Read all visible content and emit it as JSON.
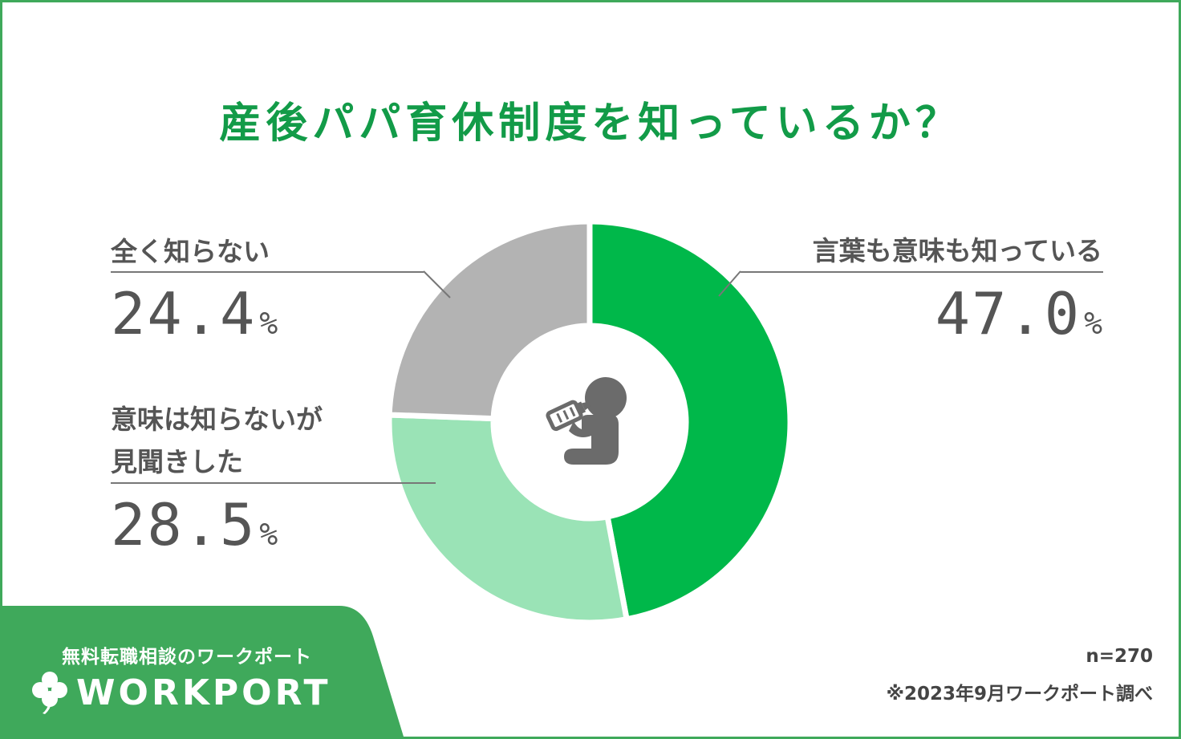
{
  "header": {
    "title": "産後パパ育休制度を知っているか？"
  },
  "colors": {
    "accent": "#129b48",
    "frame": "#3fa95b",
    "slice_know_meaning": "#00b84a",
    "slice_heard_only": "#9ae3b6",
    "slice_unknown": "#b3b3b3",
    "icon": "#6b6b6b"
  },
  "chart_data": {
    "type": "pie",
    "categories": [
      "言葉も意味も知っている",
      "意味は知らないが見聞きした",
      "全く知らない"
    ],
    "values": [
      47.0,
      28.5,
      24.4
    ],
    "unit": "%",
    "donut": true
  },
  "labels": {
    "know": {
      "line1": "言葉も意味も知っている",
      "value": "47.0",
      "unit": "%"
    },
    "heard": {
      "line1": "意味は知らないが",
      "line2": "見聞きした",
      "value": "28.5",
      "unit": "%"
    },
    "unknown": {
      "line1": "全く知らない",
      "value": "24.4",
      "unit": "%"
    }
  },
  "center_icon": "parent-feeding-baby-bottle-icon",
  "brand": {
    "tagline": "無料転職相談のワークポート",
    "logo_text": "WORKPORT",
    "logo_icon": "clover-icon"
  },
  "notes": {
    "sample": "n=270",
    "source": "※2023年9月ワークポート調べ"
  }
}
